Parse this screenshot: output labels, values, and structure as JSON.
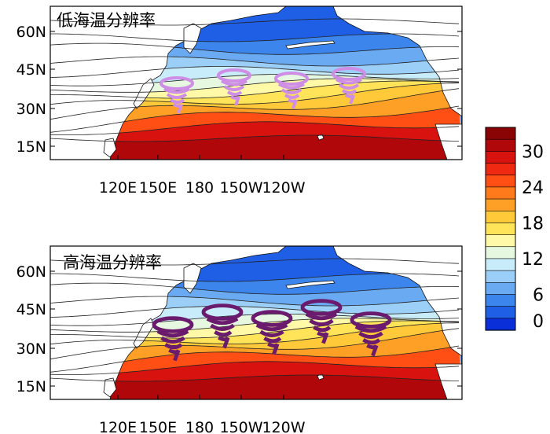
{
  "panels": [
    {
      "id": "low",
      "title": "低海温分辨率",
      "vortex_color": "#cf8ee6",
      "vortex_count": 4,
      "y_ticks": [
        "60N",
        "45N",
        "30N",
        "15N"
      ],
      "x_ticks": [
        "120E",
        "150E",
        "180",
        "150W",
        "120W"
      ]
    },
    {
      "id": "high",
      "title": "高海温分辨率",
      "vortex_color": "#6a1b6e",
      "vortex_count": 5,
      "y_ticks": [
        "60N",
        "45N",
        "30N",
        "15N"
      ],
      "x_ticks": [
        "120E",
        "150E",
        "180",
        "150W",
        "120W"
      ]
    }
  ],
  "colorbar": {
    "labels": [
      "30",
      "24",
      "18",
      "12",
      "6",
      "0"
    ],
    "colors": [
      "#0a2fd8",
      "#1e5fe6",
      "#3b85ec",
      "#6aaaf2",
      "#9ccff7",
      "#c9ecfb",
      "#e6f8e0",
      "#fff9a8",
      "#ffe45a",
      "#ffc93a",
      "#ffa026",
      "#ff7a1a",
      "#ff4f15",
      "#f02a12",
      "#d8130f",
      "#b0070a",
      "#8a0406"
    ]
  }
}
